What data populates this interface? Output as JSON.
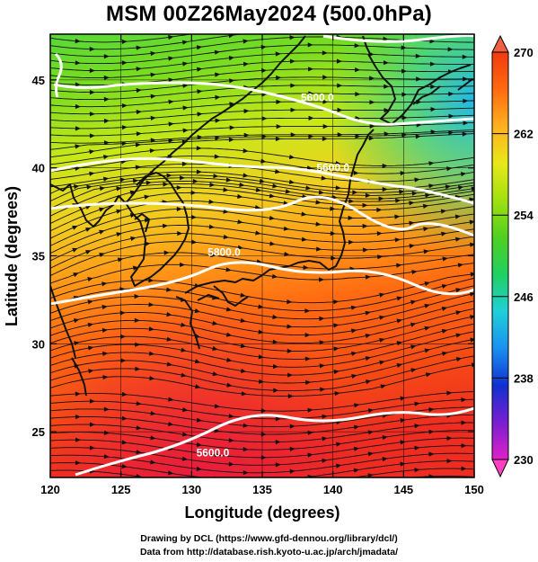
{
  "title": "MSM 00Z26May2024 (500.0hPa)",
  "x_axis": {
    "label": "Longitude (degrees)",
    "min": 120,
    "max": 150,
    "ticks": [
      120,
      125,
      130,
      135,
      140,
      145,
      150
    ]
  },
  "y_axis": {
    "label": "Latitude  (degrees)",
    "min": 22.4,
    "max": 47.6,
    "ticks": [
      25,
      30,
      35,
      40,
      45
    ]
  },
  "colorbar": {
    "min": 230,
    "max": 270,
    "ticks": [
      230,
      238,
      246,
      254,
      262,
      270
    ],
    "colors": [
      "#e020c8",
      "#7a1fd0",
      "#1030d0",
      "#1a90f0",
      "#20d0d8",
      "#20d060",
      "#50d020",
      "#a0e010",
      "#e8e818",
      "#ffb020",
      "#ff6a10",
      "#f03a10"
    ]
  },
  "height_contours": [
    {
      "label": "5600.0",
      "value": 5600.0,
      "lon": 131.5,
      "lat": 23.6
    },
    {
      "label": "5800.0",
      "value": 5800.0,
      "lon": 132.3,
      "lat": 35.0
    },
    {
      "label": "5600.0",
      "value": 5600.0,
      "lon": 140.0,
      "lat": 39.8
    },
    {
      "label": "5600.0",
      "value": 5600.0,
      "lon": 138.9,
      "lat": 43.8
    }
  ],
  "credits": {
    "line1": "Drawing by DCL (https://www.gfd-dennou.org/library/dcl/)",
    "line2": "Data from http://database.rish.kyoto-u.ac.jp/arch/jmadata/"
  }
}
